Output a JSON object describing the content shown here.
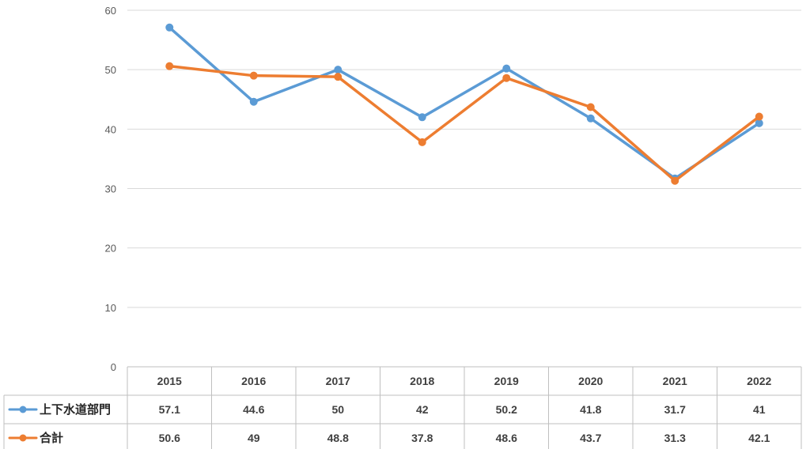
{
  "chart_data": {
    "type": "line",
    "title": "",
    "xlabel": "",
    "ylabel": "",
    "ylim": [
      0,
      60
    ],
    "yticks": [
      0,
      10,
      20,
      30,
      40,
      50,
      60
    ],
    "grid": true,
    "legend": "data-table",
    "categories": [
      "2015",
      "2016",
      "2017",
      "2018",
      "2019",
      "2020",
      "2021",
      "2022"
    ],
    "series": [
      {
        "name": "上下水道部門",
        "color": "#5B9BD5",
        "values": [
          57.1,
          44.6,
          50,
          42,
          50.2,
          41.8,
          31.7,
          41
        ]
      },
      {
        "name": "合計",
        "color": "#ED7D31",
        "values": [
          50.6,
          49,
          48.8,
          37.8,
          48.6,
          43.7,
          31.3,
          42.1
        ]
      }
    ]
  }
}
